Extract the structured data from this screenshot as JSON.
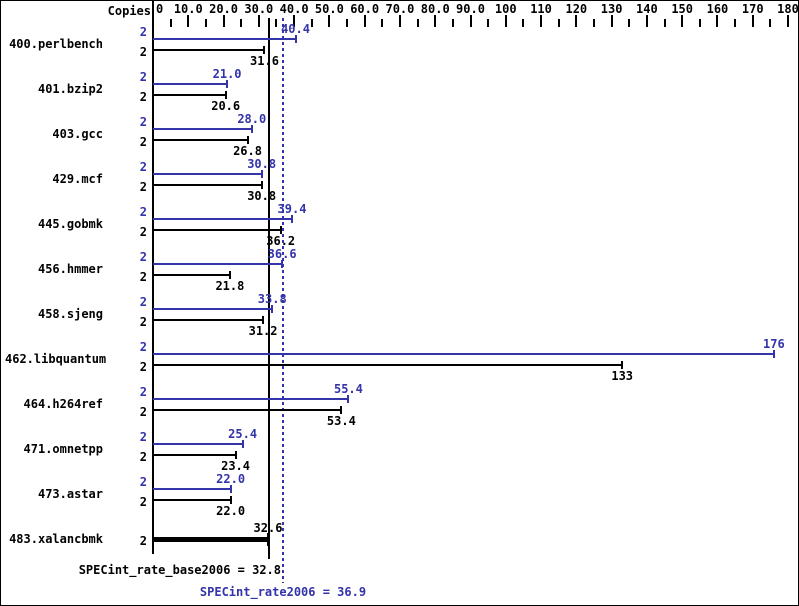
{
  "header": {
    "copies_label": "Copies"
  },
  "colors": {
    "peak_blue": "#3333aa",
    "base_black": "#000000",
    "background": "#ffffff"
  },
  "chart_data": {
    "type": "bar",
    "orientation": "horizontal",
    "title": "",
    "x_axis": {
      "min": 0,
      "max": 180,
      "major_step": 10,
      "minor_step": 5,
      "tick_labels": [
        "0",
        "10.0",
        "20.0",
        "30.0",
        "40.0",
        "50.0",
        "60.0",
        "70.0",
        "80.0",
        "90.0",
        "100",
        "110",
        "120",
        "130",
        "140",
        "150",
        "160",
        "170",
        "180"
      ]
    },
    "benchmarks": [
      {
        "name": "400.perlbench",
        "copies": "2",
        "peak": 40.4,
        "peak_label": "40.4",
        "base": 31.6,
        "base_label": "31.6"
      },
      {
        "name": "401.bzip2",
        "copies": "2",
        "peak": 21.0,
        "peak_label": "21.0",
        "base": 20.6,
        "base_label": "20.6"
      },
      {
        "name": "403.gcc",
        "copies": "2",
        "peak": 28.0,
        "peak_label": "28.0",
        "base": 26.8,
        "base_label": "26.8"
      },
      {
        "name": "429.mcf",
        "copies": "2",
        "peak": 30.8,
        "peak_label": "30.8",
        "base": 30.8,
        "base_label": "30.8"
      },
      {
        "name": "445.gobmk",
        "copies": "2",
        "peak": 39.4,
        "peak_label": "39.4",
        "base": 36.2,
        "base_label": "36.2"
      },
      {
        "name": "456.hmmer",
        "copies": "2",
        "peak": 36.6,
        "peak_label": "36.6",
        "base": 21.8,
        "base_label": "21.8"
      },
      {
        "name": "458.sjeng",
        "copies": "2",
        "peak": 33.8,
        "peak_label": "33.8",
        "base": 31.2,
        "base_label": "31.2"
      },
      {
        "name": "462.libquantum",
        "copies": "2",
        "peak": 176,
        "peak_label": "176",
        "base": 133,
        "base_label": "133"
      },
      {
        "name": "464.h264ref",
        "copies": "2",
        "peak": 55.4,
        "peak_label": "55.4",
        "base": 53.4,
        "base_label": "53.4"
      },
      {
        "name": "471.omnetpp",
        "copies": "2",
        "peak": 25.4,
        "peak_label": "25.4",
        "base": 23.4,
        "base_label": "23.4"
      },
      {
        "name": "473.astar",
        "copies": "2",
        "peak": 22.0,
        "peak_label": "22.0",
        "base": 22.0,
        "base_label": "22.0"
      },
      {
        "name": "483.xalancbmk",
        "copies": "2",
        "base": 32.6,
        "base_label": "32.6",
        "single_bar": true
      }
    ],
    "summary": {
      "base": {
        "text": "SPECint_rate_base2006 = 32.8",
        "value": 32.8
      },
      "peak": {
        "text": "SPECint_rate2006 = 36.9",
        "value": 36.9
      }
    }
  }
}
